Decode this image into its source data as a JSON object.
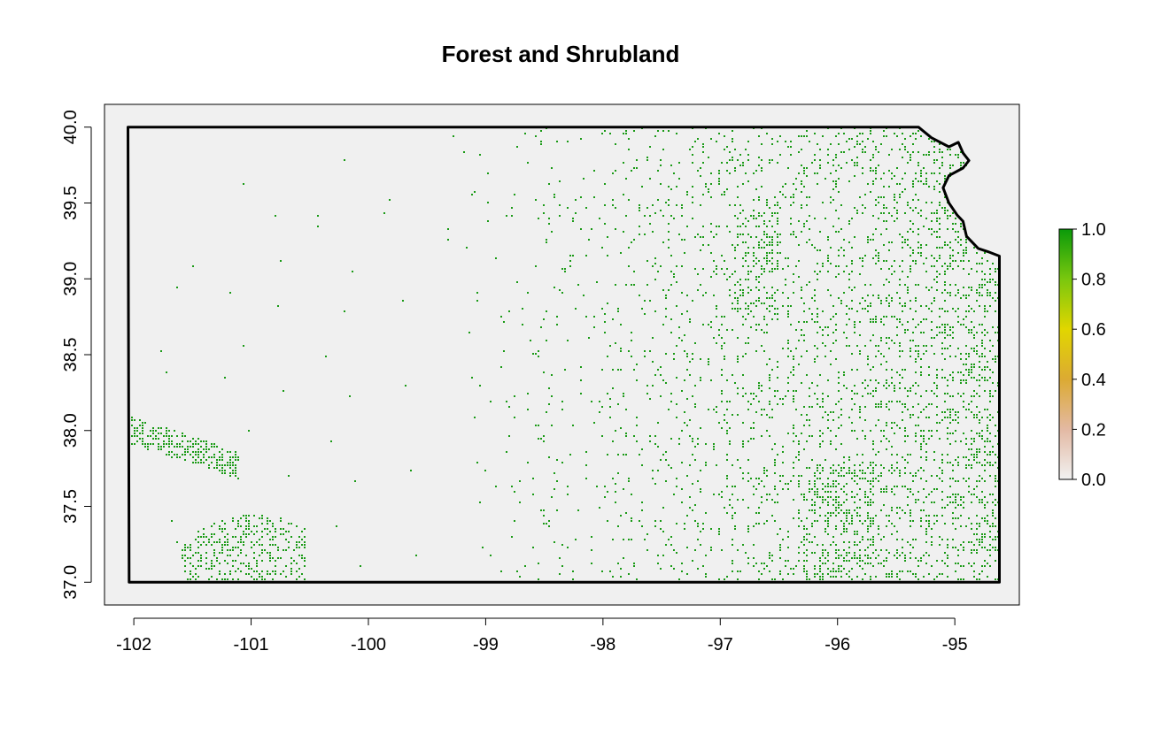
{
  "chart_data": {
    "type": "heatmap",
    "title": "Forest and Shrubland",
    "xlabel": "",
    "ylabel": "",
    "xlim": [
      -102.25,
      -94.45
    ],
    "ylim": [
      36.85,
      40.15
    ],
    "x_ticks": [
      "-102",
      "-101",
      "-100",
      "-99",
      "-98",
      "-97",
      "-96",
      "-95"
    ],
    "x_tick_values": [
      -102,
      -101,
      -100,
      -99,
      -98,
      -97,
      -96,
      -95
    ],
    "y_ticks": [
      "37.0",
      "37.5",
      "38.0",
      "38.5",
      "39.0",
      "39.5",
      "40.0"
    ],
    "y_tick_values": [
      37.0,
      37.5,
      38.0,
      38.5,
      39.0,
      39.5,
      40.0
    ],
    "colorbar": {
      "min": 0.0,
      "max": 1.0,
      "ticks": [
        "0.0",
        "0.2",
        "0.4",
        "0.6",
        "0.8",
        "1.0"
      ],
      "tick_values": [
        0.0,
        0.2,
        0.4,
        0.6,
        0.8,
        1.0
      ],
      "colors": [
        "#f1f1f1",
        "#e3b9a3",
        "#dcaa33",
        "#e1d600",
        "#7ac70e",
        "#0a9a0a"
      ]
    },
    "grid": false,
    "background_color": "#f0f0f0",
    "fill_color": "#1a9a16",
    "boundary_color": "#000000",
    "region_description": "State boundary outline with raster of forest/shrubland fraction; higher density in east and southwest corner"
  }
}
